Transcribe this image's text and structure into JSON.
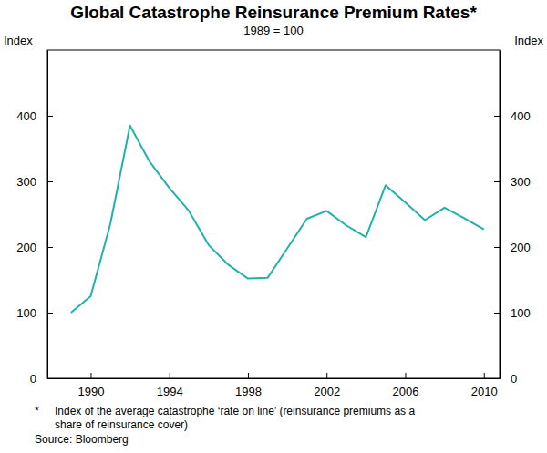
{
  "chart_data": {
    "type": "line",
    "title": "Global Catastrophe Reinsurance Premium Rates*",
    "subtitle": "1989 = 100",
    "y_label": "Index",
    "y2_label": "Index",
    "x": [
      1989,
      1990,
      1991,
      1992,
      1993,
      1994,
      1995,
      1996,
      1997,
      1998,
      1999,
      2000,
      2001,
      2002,
      2003,
      2004,
      2005,
      2006,
      2007,
      2008,
      2009,
      2010
    ],
    "values": [
      100,
      125,
      235,
      385,
      330,
      290,
      255,
      203,
      173,
      152,
      153,
      198,
      243,
      255,
      233,
      215,
      294,
      268,
      241,
      260,
      244,
      227
    ],
    "color": "#20b2aa",
    "xlim": [
      1987.8,
      2010.8
    ],
    "xticks": [
      1990,
      1994,
      1998,
      2002,
      2006,
      2010
    ],
    "ylim": [
      0,
      500
    ],
    "yticks": [
      0,
      100,
      200,
      300,
      400
    ],
    "y2lim": [
      0,
      500
    ],
    "y2ticks": [
      0,
      100,
      200,
      300,
      400
    ],
    "grid": false,
    "footnote": [
      "*",
      "Index of the average catastrophe ‘rate on line’ (reinsurance premiums as a",
      "share of reinsurance cover)"
    ],
    "source": "Source: Bloomberg"
  }
}
